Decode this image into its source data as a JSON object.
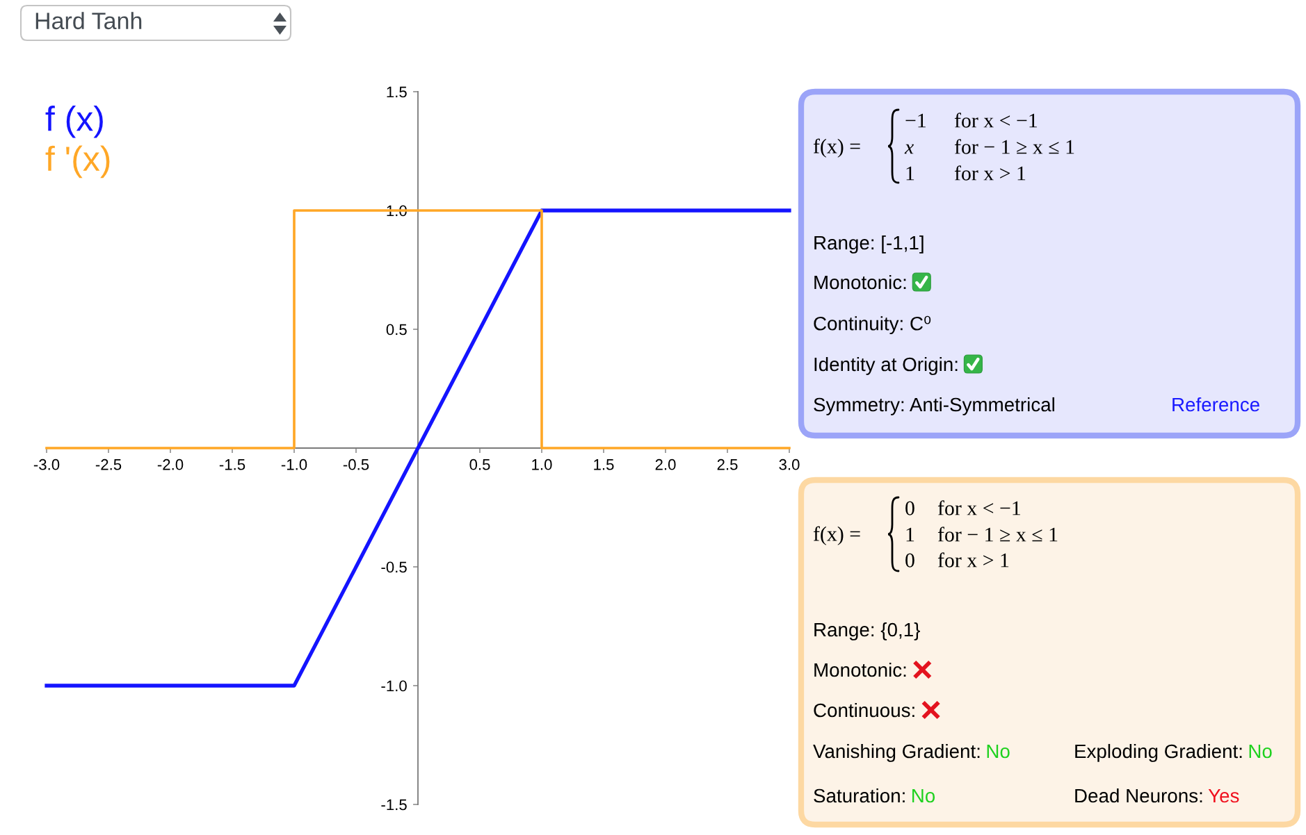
{
  "chart_data": [
    {
      "type": "line",
      "title": "Hard Tanh",
      "xlim": [
        -3,
        3
      ],
      "ylim": [
        -1.5,
        1.5
      ],
      "xticks": [
        {
          "value": -3,
          "label": "-3.0"
        },
        {
          "value": -2.5,
          "label": "-2.5"
        },
        {
          "value": -2,
          "label": "-2.0"
        },
        {
          "value": -1.5,
          "label": "-1.5"
        },
        {
          "value": -1,
          "label": "-1.0"
        },
        {
          "value": -0.5,
          "label": "-0.5"
        },
        {
          "value": 0.5,
          "label": "0.5"
        },
        {
          "value": 1,
          "label": "1.0"
        },
        {
          "value": 1.5,
          "label": "1.5"
        },
        {
          "value": 2,
          "label": "2.0"
        },
        {
          "value": 2.5,
          "label": "2.5"
        },
        {
          "value": 3,
          "label": "3.0"
        }
      ],
      "yticks": [
        {
          "value": -1.5,
          "label": "-1.5"
        },
        {
          "value": -1,
          "label": "-1.0"
        },
        {
          "value": -0.5,
          "label": "-0.5"
        },
        {
          "value": 0.5,
          "label": "0.5"
        },
        {
          "value": 1,
          "label": "1.0"
        },
        {
          "value": 1.5,
          "label": "1.5"
        }
      ],
      "legend": "top left",
      "series": [
        {
          "name": "f (x)",
          "color": "#1414ff",
          "x": [
            -3,
            -1,
            1,
            3
          ],
          "values": [
            -1,
            -1,
            1,
            1
          ]
        },
        {
          "name": "f '(x)",
          "color": "#ffa726",
          "x": [
            -3,
            -1,
            -1,
            1,
            1,
            3
          ],
          "values": [
            0,
            0,
            1,
            1,
            0,
            0
          ]
        }
      ]
    },
    {
      "type": "other",
      "annotations": [
        "f(x) =",
        "−1",
        "for x < −1",
        "x",
        "for − 1 ≥ x ≤ 1",
        "1",
        "for x > 1",
        "Range: [-1,1]",
        "Monotonic:",
        "Continuity: C⁰",
        "Identity at Origin:",
        "Symmetry: Anti-Symmetrical",
        "Reference"
      ]
    },
    {
      "type": "other",
      "annotations": [
        "f(x) =",
        "0",
        "for x < −1",
        "1",
        "for − 1 ≥ x ≤ 1",
        "0",
        "for x > 1",
        "Range: {0,1}",
        "Monotonic:",
        "Continuous:",
        "Vanishing Gradient:",
        "No",
        "Exploding Gradient:",
        "No",
        "Saturation:",
        "No",
        "Dead Neurons:",
        "Yes"
      ]
    }
  ]
}
